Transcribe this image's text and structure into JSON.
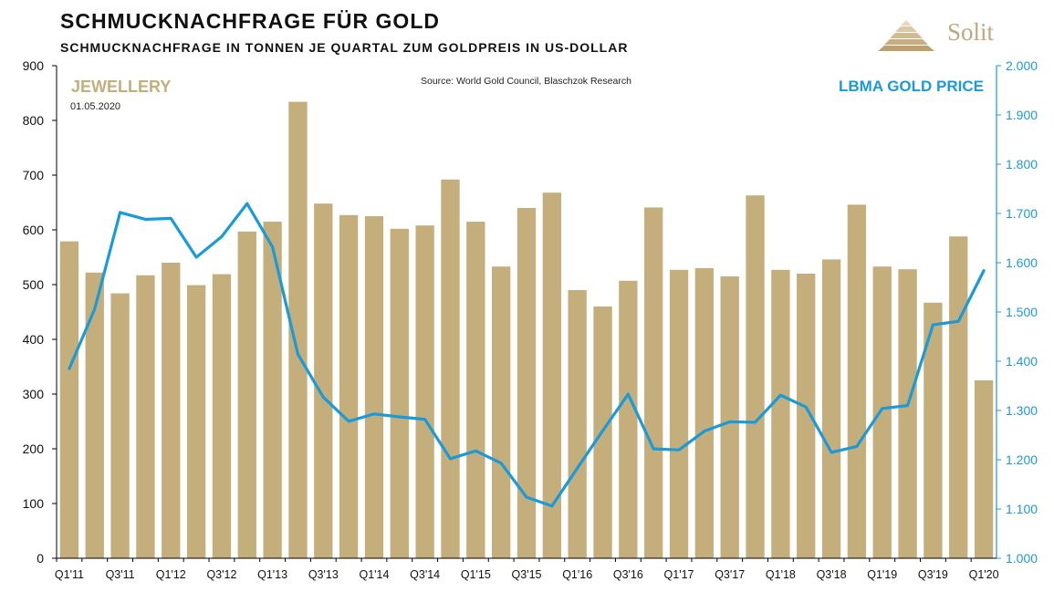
{
  "header": {
    "title": "SCHMUCKNACHFRAGE FÜR GOLD",
    "subtitle": "SCHMUCKNACHFRAGE IN TONNEN JE QUARTAL ZUM GOLDPREIS IN US-DOLLAR",
    "logo_text": "Solit"
  },
  "colors": {
    "bar": "#c4ae7b",
    "line": "#1a9ad9",
    "label_left": "#c4ae7b",
    "label_right": "#1a9ad9"
  },
  "chart_data": {
    "type": "bar+line",
    "source": "Source: World Gold Council, Blaschzok Research",
    "left_label": "JEWELLERY",
    "date_label": "01.05.2020",
    "right_label": "LBMA GOLD PRICE",
    "categories": [
      "Q1'11",
      "Q2'11",
      "Q3'11",
      "Q4'11",
      "Q1'12",
      "Q2'12",
      "Q3'12",
      "Q4'12",
      "Q1'13",
      "Q2'13",
      "Q3'13",
      "Q4'13",
      "Q1'14",
      "Q2'14",
      "Q3'14",
      "Q4'14",
      "Q1'15",
      "Q2'15",
      "Q3'15",
      "Q4'15",
      "Q1'16",
      "Q2'16",
      "Q3'16",
      "Q4'16",
      "Q1'17",
      "Q2'17",
      "Q3'17",
      "Q4'17",
      "Q1'18",
      "Q2'18",
      "Q3'18",
      "Q4'18",
      "Q1'19",
      "Q2'19",
      "Q3'19",
      "Q4'19",
      "Q1'20"
    ],
    "x_tick_labels": [
      "Q1'11",
      "",
      "Q3'11",
      "",
      "Q1'12",
      "",
      "Q3'12",
      "",
      "Q1'13",
      "",
      "Q3'13",
      "",
      "Q1'14",
      "",
      "Q3'14",
      "",
      "Q1'15",
      "",
      "Q3'15",
      "",
      "Q1'16",
      "",
      "Q3'16",
      "",
      "Q1'17",
      "",
      "Q3'17",
      "",
      "Q1'18",
      "",
      "Q3'18",
      "",
      "Q1'19",
      "",
      "Q3'19",
      "",
      "Q1'20"
    ],
    "series": [
      {
        "name": "JEWELLERY",
        "type": "bar",
        "axis": "left",
        "values": [
          579,
          522,
          484,
          517,
          540,
          499,
          519,
          597,
          615,
          834,
          648,
          627,
          625,
          602,
          608,
          692,
          615,
          533,
          640,
          668,
          490,
          460,
          507,
          641,
          527,
          530,
          515,
          663,
          527,
          520,
          546,
          646,
          533,
          528,
          467,
          588,
          325
        ]
      },
      {
        "name": "LBMA GOLD PRICE",
        "type": "line",
        "axis": "right",
        "values": [
          1385,
          1506,
          1702,
          1688,
          1690,
          1611,
          1653,
          1720,
          1632,
          1414,
          1327,
          1278,
          1293,
          1287,
          1282,
          1202,
          1218,
          1193,
          1124,
          1106,
          1183,
          1259,
          1333,
          1222,
          1220,
          1258,
          1277,
          1276,
          1331,
          1307,
          1215,
          1227,
          1304,
          1310,
          1474,
          1481,
          1584
        ]
      }
    ],
    "left_axis": {
      "min": 0,
      "max": 900,
      "ticks": [
        "0",
        "100",
        "200",
        "300",
        "400",
        "500",
        "600",
        "700",
        "800",
        "900"
      ]
    },
    "right_axis": {
      "min": 1000,
      "max": 2000,
      "ticks": [
        "1.000",
        "1.100",
        "1.200",
        "1.300",
        "1.400",
        "1.500",
        "1.600",
        "1.700",
        "1.800",
        "1.900",
        "2.000"
      ]
    }
  }
}
